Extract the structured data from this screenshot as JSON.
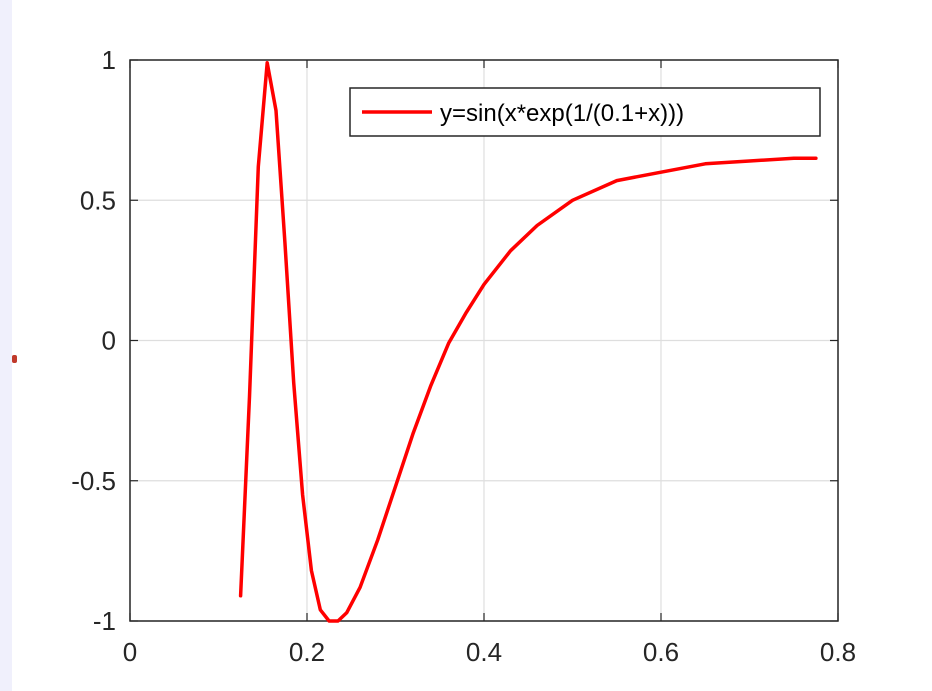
{
  "chart_data": {
    "type": "line",
    "title": "",
    "xlabel": "",
    "ylabel": "",
    "xlim": [
      0,
      0.8
    ],
    "ylim": [
      -1,
      1
    ],
    "xticks": [
      "0",
      "0.2",
      "0.4",
      "0.6",
      "0.8"
    ],
    "yticks": [
      "-1",
      "-0.5",
      "0",
      "0.5",
      "1"
    ],
    "grid": true,
    "legend_position": "top-right",
    "series": [
      {
        "name": "y=sin(x*exp(1/(0.1+x)))",
        "color": "#ff0000",
        "x": [
          0.125,
          0.135,
          0.145,
          0.155,
          0.165,
          0.175,
          0.185,
          0.195,
          0.205,
          0.215,
          0.225,
          0.235,
          0.245,
          0.26,
          0.28,
          0.3,
          0.32,
          0.34,
          0.36,
          0.38,
          0.4,
          0.43,
          0.46,
          0.5,
          0.55,
          0.6,
          0.65,
          0.7,
          0.75,
          0.775
        ],
        "y": [
          -0.91,
          -0.2,
          0.62,
          0.99,
          0.82,
          0.35,
          -0.15,
          -0.55,
          -0.82,
          -0.96,
          -1.0,
          -1.0,
          -0.97,
          -0.88,
          -0.71,
          -0.52,
          -0.33,
          -0.16,
          -0.01,
          0.1,
          0.2,
          0.32,
          0.41,
          0.5,
          0.57,
          0.6,
          0.63,
          0.64,
          0.65,
          0.65
        ]
      }
    ]
  }
}
